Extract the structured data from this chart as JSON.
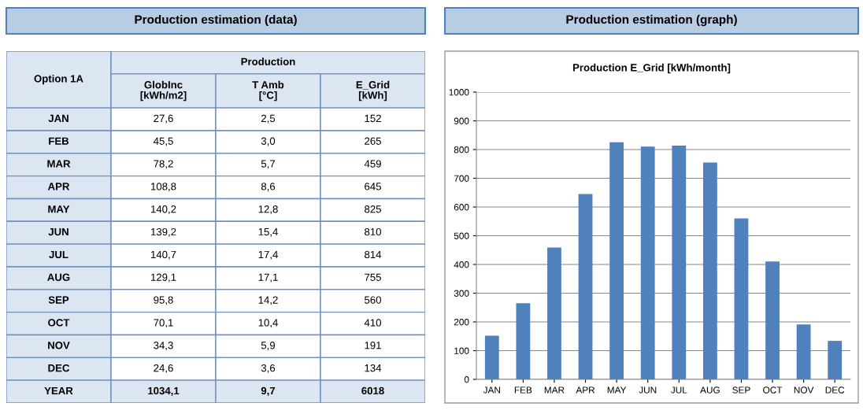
{
  "chart_data": [
    {
      "type": "other",
      "title": "Production estimation (data)",
      "annotations": [
        "Option 1A",
        "Production"
      ],
      "categories": [
        "JAN",
        "FEB",
        "MAR",
        "APR",
        "MAY",
        "JUN",
        "JUL",
        "AUG",
        "SEP",
        "OCT",
        "NOV",
        "DEC",
        "YEAR"
      ],
      "series": [
        {
          "name": "GlobInc\n[kWh/m2]",
          "values": [
            27.6,
            45.5,
            78.2,
            108.8,
            140.2,
            139.2,
            140.7,
            129.1,
            95.8,
            70.1,
            34.3,
            24.6,
            1034.1
          ],
          "value_labels": [
            "27,6",
            "45,5",
            "78,2",
            "108,8",
            "140,2",
            "139,2",
            "140,7",
            "129,1",
            "95,8",
            "70,1",
            "34,3",
            "24,6",
            "1034,1"
          ],
          "colors": [
            "#ffffff",
            "#ffffff",
            "#ffffff",
            "#ffffff",
            "#ffffff",
            "#ffffff",
            "#ffffff",
            "#ffffff",
            "#ffffff",
            "#ffffff",
            "#ffffff",
            "#ffffff",
            "#dce6f2"
          ]
        },
        {
          "name": "T Amb\n[°C]",
          "values": [
            2.5,
            3.0,
            5.7,
            8.6,
            12.8,
            15.4,
            17.4,
            17.1,
            14.2,
            10.4,
            5.9,
            3.6,
            9.7
          ],
          "value_labels": [
            "2,5",
            "3,0",
            "5,7",
            "8,6",
            "12,8",
            "15,4",
            "17,4",
            "17,1",
            "14,2",
            "10,4",
            "5,9",
            "3,6",
            "9,7"
          ],
          "colors": [
            "#ffffff",
            "#ffffff",
            "#ffffff",
            "#ffffff",
            "#ffffff",
            "#ffffff",
            "#ffffff",
            "#ffffff",
            "#ffffff",
            "#ffffff",
            "#ffffff",
            "#ffffff",
            "#dce6f2"
          ]
        },
        {
          "name": "E_Grid\n[kWh]",
          "values": [
            152,
            265,
            459,
            645,
            825,
            810,
            814,
            755,
            560,
            410,
            191,
            134,
            6018
          ],
          "value_labels": [
            "152",
            "265",
            "459",
            "645",
            "825",
            "810",
            "814",
            "755",
            "560",
            "410",
            "191",
            "134",
            "6018"
          ],
          "colors": [
            "#ffffff",
            "#ffffff",
            "#ffffff",
            "#ffffff",
            "#ffffff",
            "#ffffff",
            "#ffffff",
            "#ffffff",
            "#ffffff",
            "#ffffff",
            "#ffffff",
            "#ffffff",
            "#dce6f2"
          ]
        }
      ]
    },
    {
      "type": "bar",
      "title": "Production estimation (graph)",
      "subtitle": "Production E_Grid [kWh/month]",
      "categories": [
        "JAN",
        "FEB",
        "MAR",
        "APR",
        "MAY",
        "JUN",
        "JUL",
        "AUG",
        "SEP",
        "OCT",
        "NOV",
        "DEC"
      ],
      "values": [
        152,
        265,
        459,
        645,
        825,
        810,
        814,
        755,
        560,
        410,
        191,
        134
      ],
      "color": "#4f81bd",
      "ylim": [
        0,
        1000
      ],
      "yticks": [
        0,
        100,
        200,
        300,
        400,
        500,
        600,
        700,
        800,
        900,
        1000
      ],
      "grid": "y"
    }
  ]
}
